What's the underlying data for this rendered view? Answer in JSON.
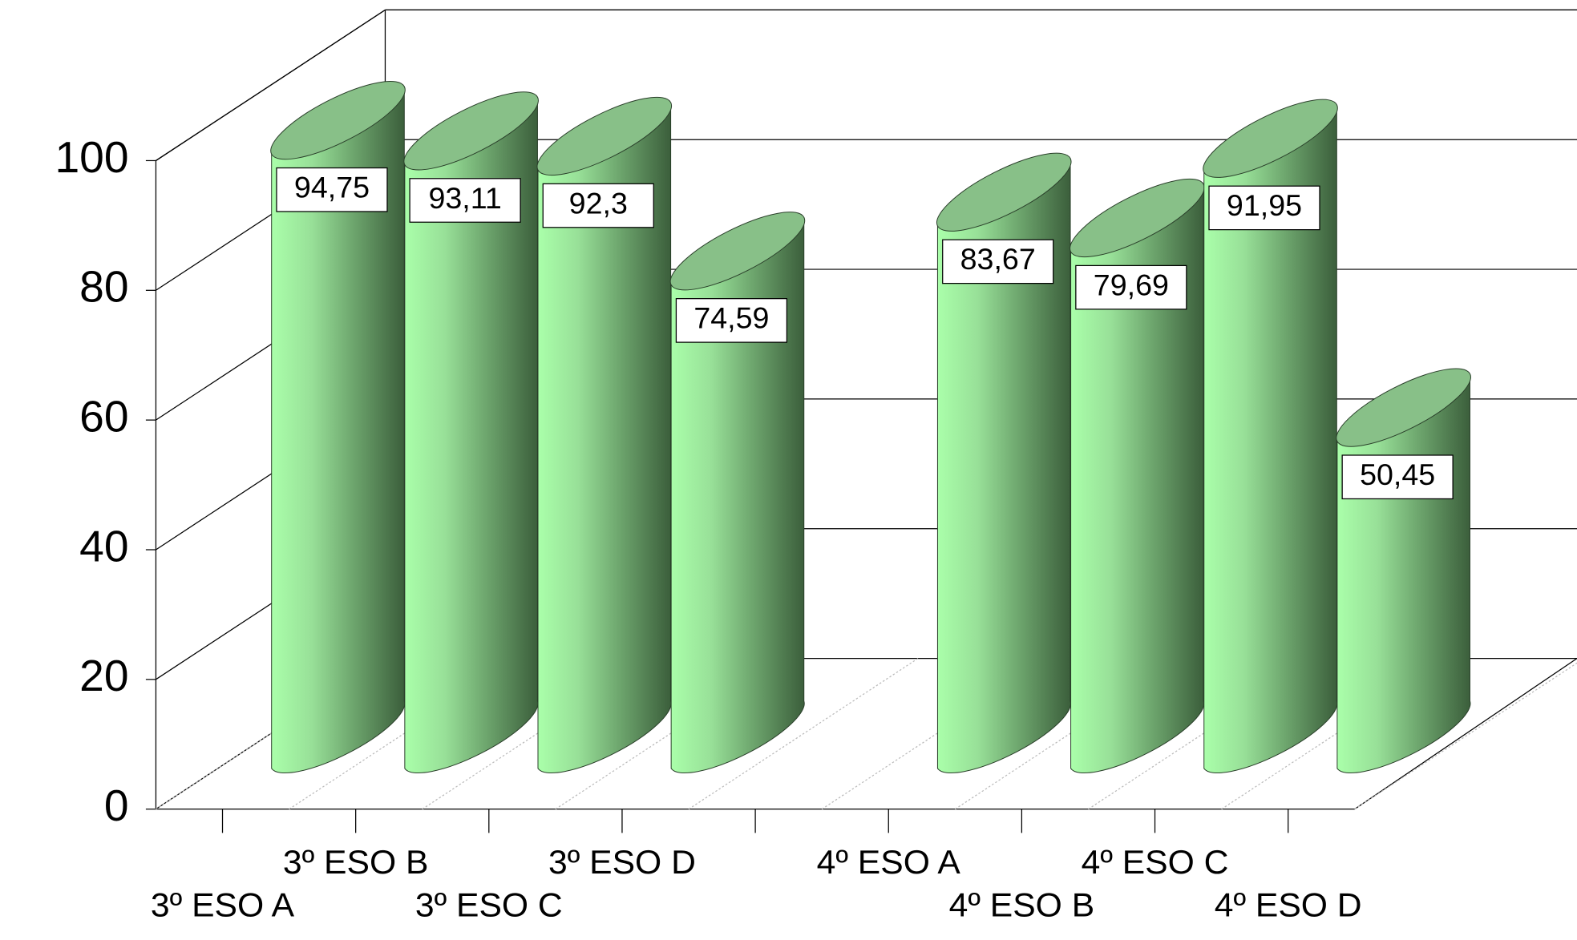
{
  "chart_data": {
    "type": "bar",
    "categories": [
      "3º ESO A",
      "3º ESO B",
      "3º ESO C",
      "3º ESO D",
      null,
      "4º ESO A",
      "4º ESO B",
      "4º ESO C",
      "4º ESO D"
    ],
    "values": [
      94.75,
      93.11,
      92.3,
      74.59,
      null,
      83.67,
      79.69,
      91.95,
      50.45
    ],
    "value_labels": [
      "94,75",
      "93,11",
      "92,3",
      "74,59",
      null,
      "83,67",
      "79,69",
      "91,95",
      "50,45"
    ],
    "color": "#88c088",
    "ylim": [
      0,
      100
    ],
    "yticks": [
      0,
      20,
      40,
      60,
      80,
      100
    ],
    "grid": true
  }
}
